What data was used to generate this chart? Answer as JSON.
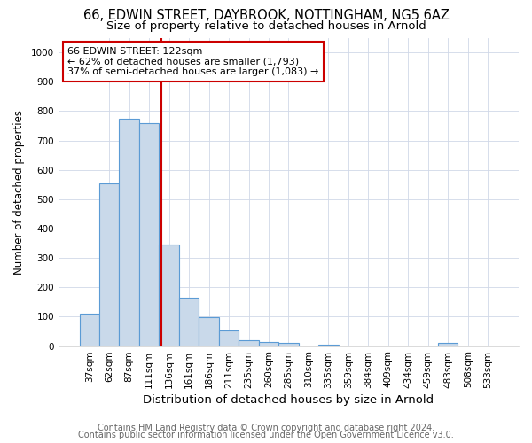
{
  "title1": "66, EDWIN STREET, DAYBROOK, NOTTINGHAM, NG5 6AZ",
  "title2": "Size of property relative to detached houses in Arnold",
  "xlabel": "Distribution of detached houses by size in Arnold",
  "ylabel": "Number of detached properties",
  "categories": [
    "37sqm",
    "62sqm",
    "87sqm",
    "111sqm",
    "136sqm",
    "161sqm",
    "186sqm",
    "211sqm",
    "235sqm",
    "260sqm",
    "285sqm",
    "310sqm",
    "335sqm",
    "359sqm",
    "384sqm",
    "409sqm",
    "434sqm",
    "459sqm",
    "483sqm",
    "508sqm",
    "533sqm"
  ],
  "values": [
    110,
    555,
    775,
    760,
    345,
    165,
    97,
    53,
    20,
    13,
    10,
    0,
    5,
    0,
    0,
    0,
    0,
    0,
    10,
    0,
    0
  ],
  "bar_color": "#c9d9ea",
  "bar_edge_color": "#5b9bd5",
  "vline_color": "#cc0000",
  "annotation_text": "66 EDWIN STREET: 122sqm\n← 62% of detached houses are smaller (1,793)\n37% of semi-detached houses are larger (1,083) →",
  "annotation_box_color": "#ffffff",
  "annotation_box_edge": "#cc0000",
  "ylim": [
    0,
    1050
  ],
  "yticks": [
    0,
    100,
    200,
    300,
    400,
    500,
    600,
    700,
    800,
    900,
    1000
  ],
  "footnote1": "Contains HM Land Registry data © Crown copyright and database right 2024.",
  "footnote2": "Contains public sector information licensed under the Open Government Licence v3.0.",
  "bg_color": "#ffffff",
  "grid_color": "#d0d8e8",
  "title1_fontsize": 10.5,
  "title2_fontsize": 9.5,
  "xlabel_fontsize": 9.5,
  "ylabel_fontsize": 8.5,
  "tick_fontsize": 7.5,
  "footnote_fontsize": 7,
  "annot_fontsize": 8
}
